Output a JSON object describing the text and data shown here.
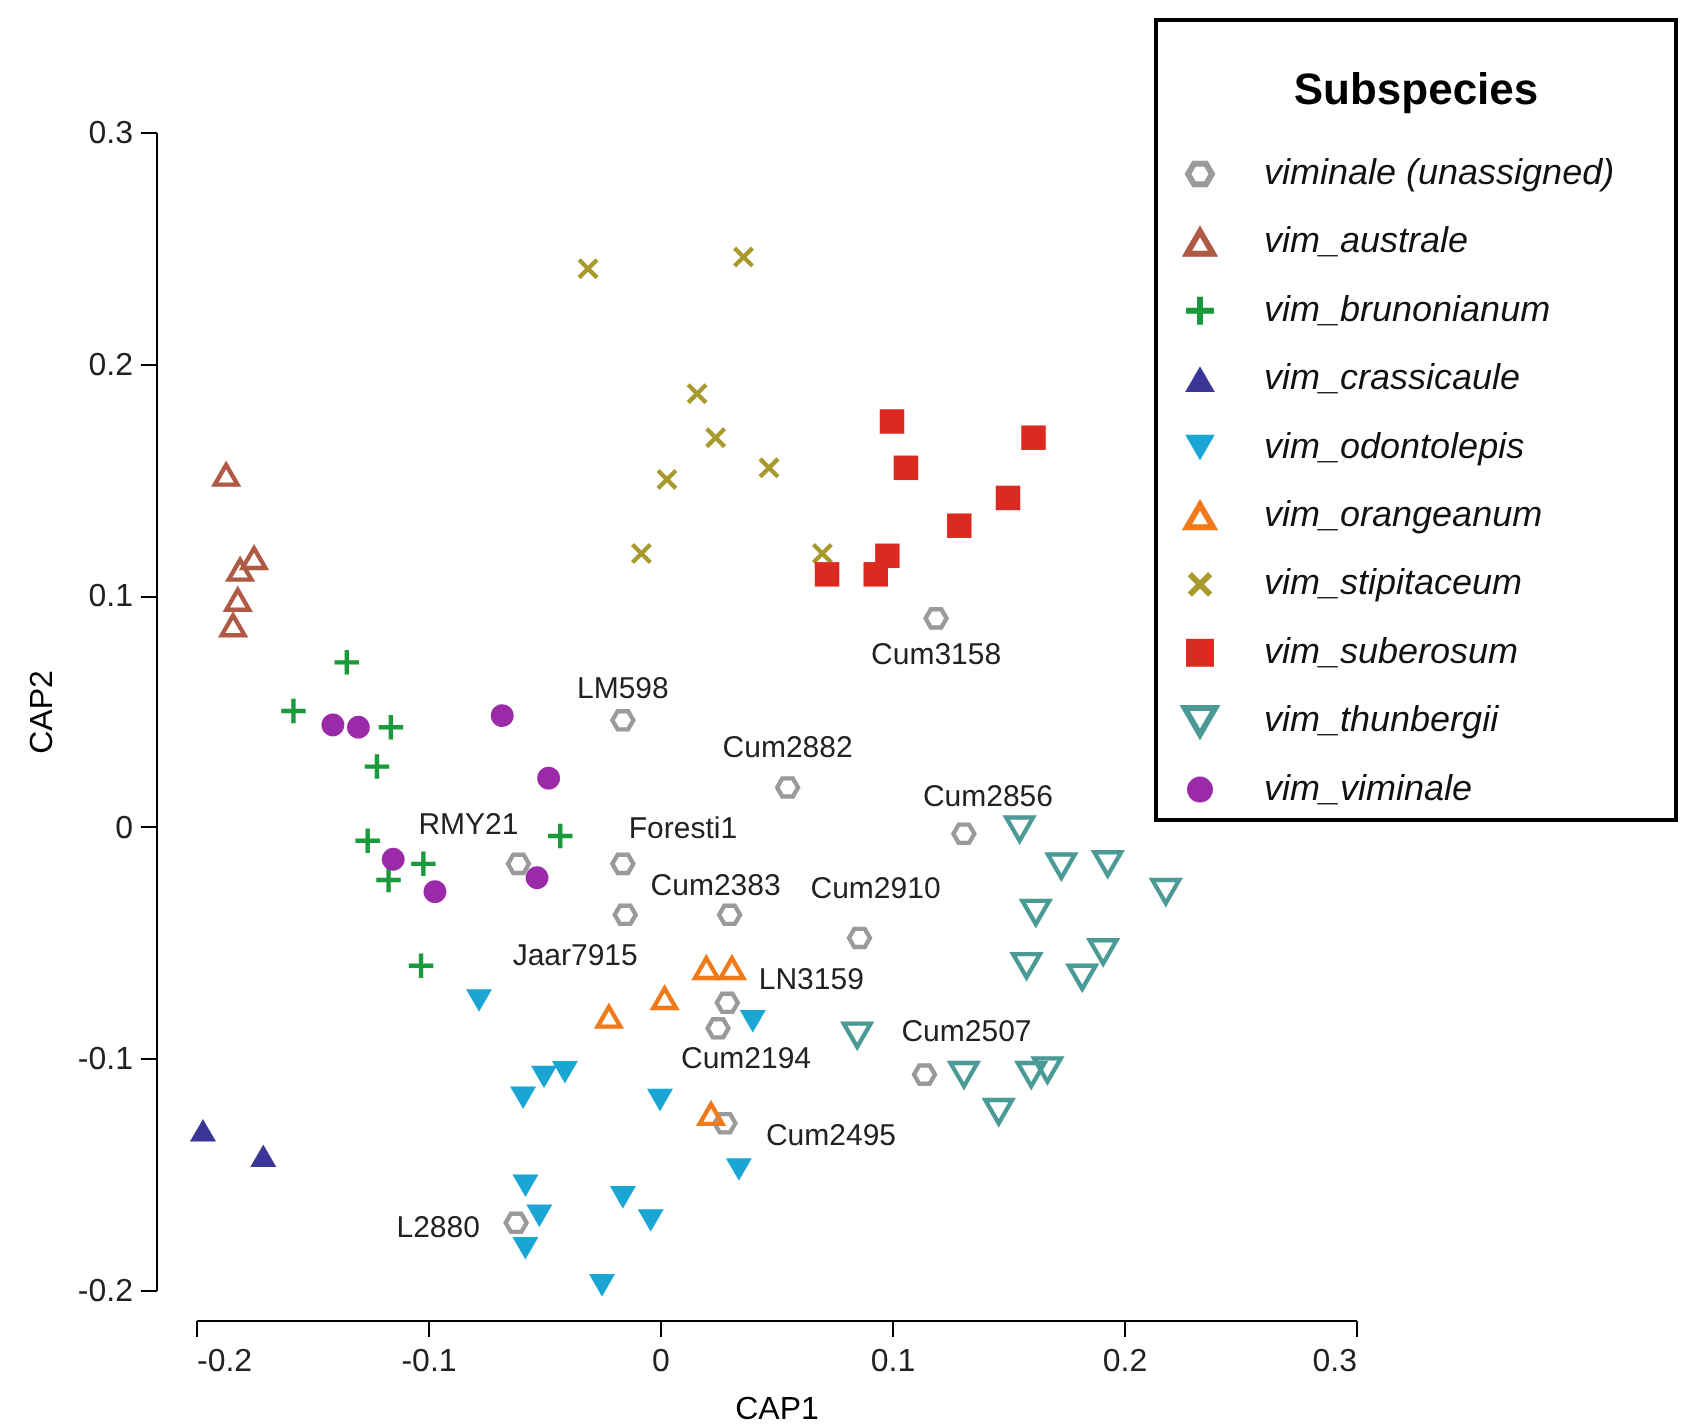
{
  "chart_data": {
    "type": "scatter",
    "xlabel": "CAP1",
    "ylabel": "CAP2",
    "legend_title": "Subspecies",
    "legend": "top right",
    "grid": false,
    "xlim": [
      -0.2,
      0.3
    ],
    "xticks": [
      -0.2,
      -0.1,
      0,
      0.1,
      0.2,
      0.3
    ],
    "ylim": [
      -0.2,
      0.3
    ],
    "yticks": [
      -0.2,
      -0.1,
      0,
      0.1,
      0.2,
      0.3
    ],
    "series": [
      {
        "name": "viminale (unassigned)",
        "color": "#9a9a9a",
        "marker": "circle-open",
        "x": [
          0.119,
          -0.016,
          0.055,
          0.131,
          -0.061,
          -0.016,
          0.03,
          -0.015,
          0.086,
          0.029,
          0.025,
          0.114,
          0.028,
          -0.062
        ],
        "values": [
          0.09,
          0.046,
          0.017,
          -0.003,
          -0.016,
          -0.016,
          -0.038,
          -0.038,
          -0.048,
          -0.076,
          -0.087,
          -0.107,
          -0.128,
          -0.171
        ]
      },
      {
        "name": "vim_australe",
        "color": "#b05a45",
        "marker": "triangle-open",
        "x": [
          -0.187,
          -0.175,
          -0.181,
          -0.182,
          -0.184
        ],
        "values": [
          0.152,
          0.116,
          0.111,
          0.098,
          0.087
        ]
      },
      {
        "name": "vim_brunonianum",
        "color": "#1a9a3a",
        "marker": "plus",
        "x": [
          -0.135,
          -0.158,
          -0.116,
          -0.122,
          -0.126,
          -0.102,
          -0.117,
          -0.043,
          -0.103
        ],
        "values": [
          0.071,
          0.05,
          0.043,
          0.026,
          -0.006,
          -0.016,
          -0.023,
          -0.004,
          -0.06
        ]
      },
      {
        "name": "vim_crassicaule",
        "color": "#3a3596",
        "marker": "triangle",
        "x": [
          -0.197,
          -0.171
        ],
        "values": [
          -0.131,
          -0.142
        ]
      },
      {
        "name": "vim_odontolepis",
        "color": "#1aa6d4",
        "marker": "triangle-down",
        "x": [
          -0.078,
          -0.059,
          -0.05,
          -0.041,
          0.0,
          -0.058,
          -0.052,
          -0.058,
          -0.016,
          -0.004,
          -0.025,
          0.04,
          0.034
        ],
        "values": [
          -0.075,
          -0.117,
          -0.108,
          -0.106,
          -0.118,
          -0.155,
          -0.168,
          -0.182,
          -0.16,
          -0.17,
          -0.198,
          -0.084,
          -0.148
        ]
      },
      {
        "name": "vim_orangeanum",
        "color": "#f07a1a",
        "marker": "triangle-open",
        "x": [
          -0.022,
          0.002,
          0.02,
          0.031,
          0.022
        ],
        "values": [
          -0.082,
          -0.074,
          -0.061,
          -0.061,
          -0.124
        ]
      },
      {
        "name": "vim_stipitaceum",
        "color": "#a8992c",
        "marker": "x",
        "x": [
          -0.031,
          0.036,
          0.016,
          0.024,
          0.003,
          0.047,
          -0.008,
          0.07
        ],
        "values": [
          0.241,
          0.246,
          0.187,
          0.168,
          0.15,
          0.155,
          0.118,
          0.118
        ]
      },
      {
        "name": "vim_suberosum",
        "color": "#dd2a20",
        "marker": "square",
        "x": [
          0.1,
          0.106,
          0.129,
          0.15,
          0.161,
          0.072,
          0.093,
          0.098
        ],
        "values": [
          0.175,
          0.155,
          0.13,
          0.142,
          0.168,
          0.109,
          0.109,
          0.117
        ]
      },
      {
        "name": "vim_thunbergii",
        "color": "#4a9a95",
        "marker": "triangle-down-open",
        "x": [
          0.155,
          0.173,
          0.193,
          0.218,
          0.162,
          0.191,
          0.158,
          0.182,
          0.085,
          0.131,
          0.16,
          0.167,
          0.146
        ],
        "values": [
          -0.001,
          -0.017,
          -0.016,
          -0.028,
          -0.037,
          -0.054,
          -0.06,
          -0.065,
          -0.09,
          -0.107,
          -0.107,
          -0.105,
          -0.123
        ]
      },
      {
        "name": "vim_viminale",
        "color": "#9a2aa8",
        "marker": "circle",
        "x": [
          -0.141,
          -0.13,
          -0.068,
          -0.048,
          -0.115,
          -0.097,
          -0.053
        ],
        "values": [
          0.044,
          0.043,
          0.048,
          0.021,
          -0.014,
          -0.028,
          -0.022
        ]
      }
    ],
    "annotations": [
      {
        "text": "Cum3158",
        "x": 0.119,
        "y": 0.09
      },
      {
        "text": "LM598",
        "x": -0.016,
        "y": 0.046
      },
      {
        "text": "Cum2882",
        "x": 0.055,
        "y": 0.017
      },
      {
        "text": "Cum2856",
        "x": 0.131,
        "y": -0.003
      },
      {
        "text": "RMY21",
        "x": -0.061,
        "y": -0.016
      },
      {
        "text": "Foresti1",
        "x": -0.016,
        "y": -0.016
      },
      {
        "text": "Cum2383",
        "x": 0.03,
        "y": -0.038
      },
      {
        "text": "Jaar7915",
        "x": -0.015,
        "y": -0.038
      },
      {
        "text": "Cum2910",
        "x": 0.086,
        "y": -0.048
      },
      {
        "text": "LN3159",
        "x": 0.029,
        "y": -0.076
      },
      {
        "text": "Cum2194",
        "x": 0.025,
        "y": -0.087
      },
      {
        "text": "Cum2507",
        "x": 0.114,
        "y": -0.107
      },
      {
        "text": "Cum2495",
        "x": 0.028,
        "y": -0.128
      },
      {
        "text": "L2880",
        "x": -0.062,
        "y": -0.171
      }
    ]
  }
}
